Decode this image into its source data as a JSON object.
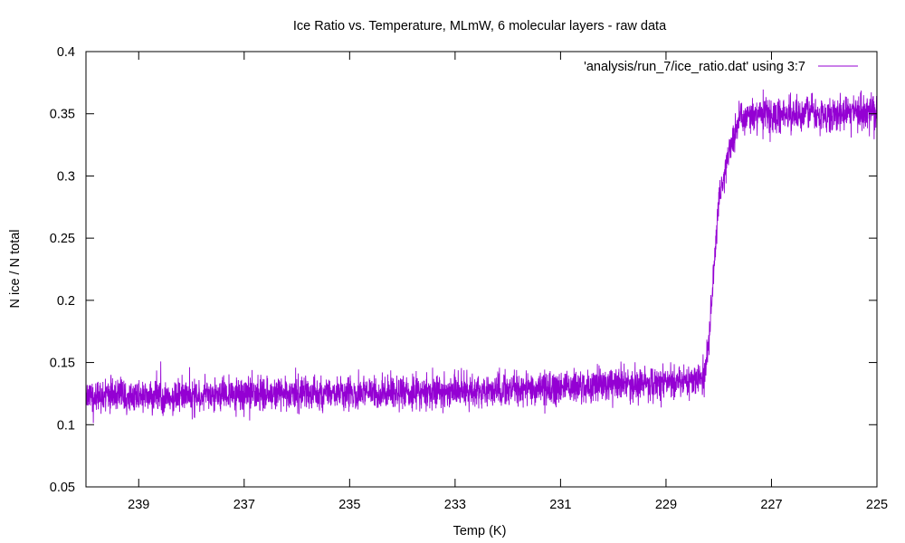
{
  "chart_data": {
    "type": "line",
    "title": "Ice Ratio vs. Temperature, MLmW, 6 molecular layers - raw data",
    "xlabel": "Temp (K)",
    "ylabel": "N ice / N total",
    "xlim": [
      240,
      225
    ],
    "x_reversed": true,
    "ylim": [
      0.05,
      0.4
    ],
    "xticks": [
      "239",
      "237",
      "235",
      "233",
      "231",
      "229",
      "227",
      "225"
    ],
    "yticks": [
      "0.05",
      "0.1",
      "0.15",
      "0.2",
      "0.25",
      "0.3",
      "0.35",
      "0.4"
    ],
    "grid": false,
    "legend_position": "top-right",
    "series": [
      {
        "name": "'analysis/run_7/ice_ratio.dat' using 3:7",
        "color": "#9400d3",
        "style": "noisy-raw",
        "x": [
          240,
          237,
          234,
          231,
          229,
          228.3,
          228.2,
          228.0,
          227.8,
          227.6,
          227.2,
          226,
          225
        ],
        "y": [
          0.123,
          0.124,
          0.126,
          0.13,
          0.134,
          0.137,
          0.16,
          0.28,
          0.32,
          0.345,
          0.35,
          0.35,
          0.352
        ],
        "noise_amplitude": 0.012
      }
    ]
  }
}
